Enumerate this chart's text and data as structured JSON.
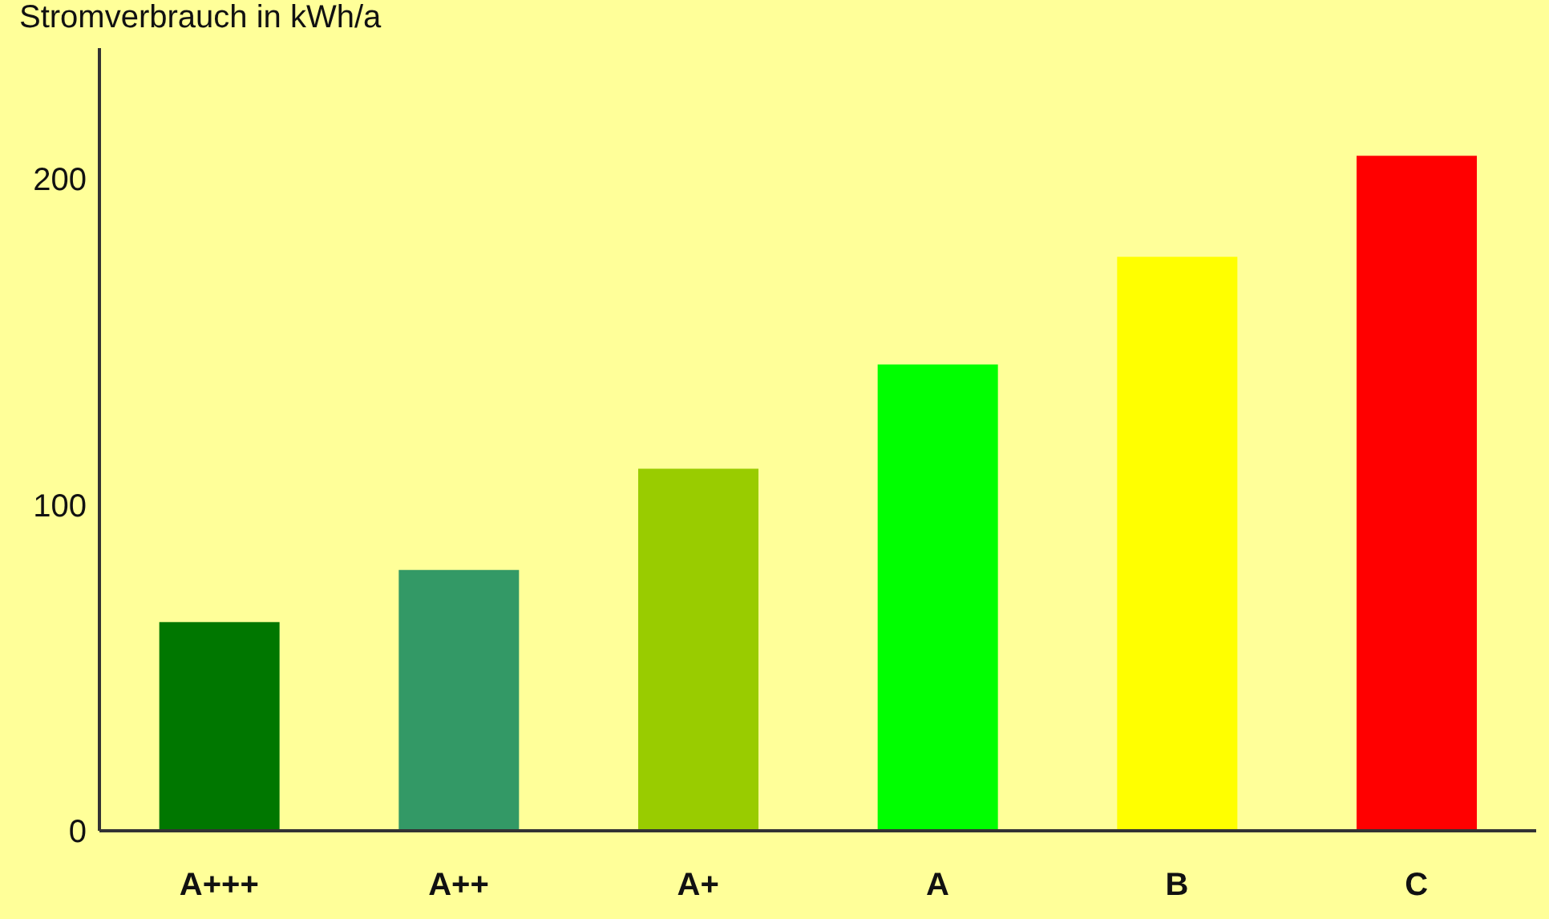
{
  "chart_data": {
    "type": "bar",
    "ylabel": "Stromverbrauch in kWh/a",
    "categories": [
      "A+++",
      "A++",
      "A+",
      "A",
      "B",
      "C"
    ],
    "values": [
      64,
      80,
      111,
      143,
      176,
      207
    ],
    "colors": [
      "#007700",
      "#339966",
      "#99cc00",
      "#00ff00",
      "#ffff00",
      "#ff0000"
    ],
    "ylim": [
      0,
      240
    ],
    "yticks": [
      0,
      100,
      200
    ],
    "grid": false,
    "legend": false
  }
}
